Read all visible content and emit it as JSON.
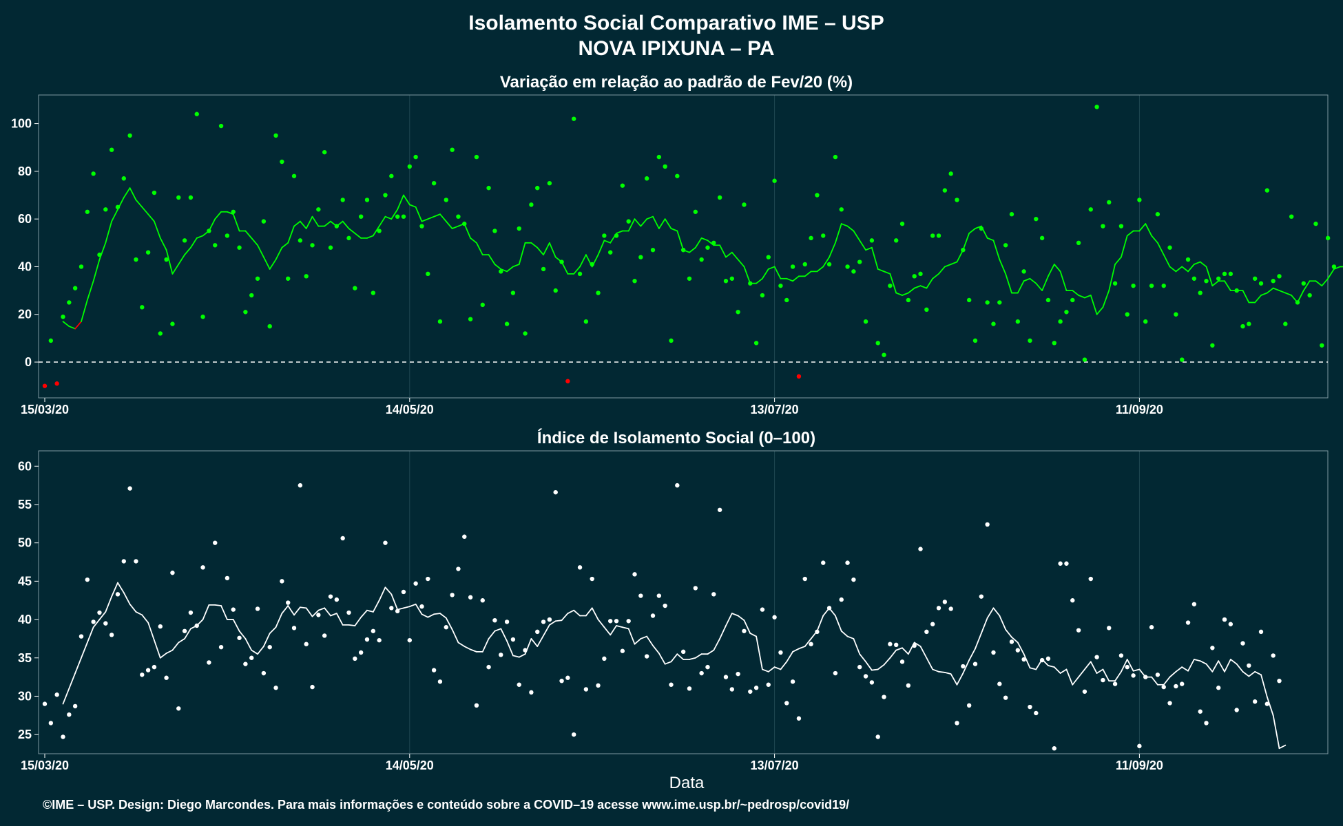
{
  "title": "Isolamento Social Comparativo IME – USP",
  "subtitle": "NOVA IPIXUNA – PA",
  "caption": "©IME – USP. Design: Diego Marcondes. Para mais informações e conteúdo sobre a COVID–19 acesse www.ime.usp.br/~pedrosp/covid19/",
  "colors": {
    "background": "#022833",
    "grid": "#1f4752",
    "positive": "#00ff00",
    "negative": "#ff0000",
    "index": "#ffffff"
  },
  "chart_data": [
    {
      "type": "scatter",
      "title": "Variação em relação ao padrão de Fev/20 (%)",
      "xlabel": "",
      "ylabel": "",
      "x_start": "15/03/20",
      "x_ticks": [
        "15/03/20",
        "14/05/20",
        "13/07/20",
        "11/09/20"
      ],
      "x_tick_days": [
        0,
        60,
        120,
        180
      ],
      "yticks": [
        0,
        20,
        40,
        60,
        80,
        100
      ],
      "ylim": [
        -15,
        112
      ],
      "reference_line": 0,
      "series": [
        {
          "values": [
            -10,
            9,
            -9,
            19,
            25,
            31,
            40,
            63,
            79,
            45,
            64,
            89,
            65,
            77,
            95,
            43,
            23,
            46,
            71,
            12,
            43,
            16,
            69,
            51,
            69,
            104,
            19,
            55,
            49,
            99,
            53,
            63,
            48,
            21,
            28,
            35,
            59,
            15,
            95,
            84,
            35,
            78,
            51,
            36,
            49,
            64,
            88,
            48,
            57,
            68,
            52,
            31,
            61,
            68,
            29,
            55,
            70,
            78,
            61,
            61,
            82,
            86,
            57,
            37,
            75,
            17,
            68,
            89,
            61,
            58,
            18,
            86,
            24,
            73,
            55,
            38,
            16,
            29,
            56,
            12,
            66,
            73,
            39,
            75,
            30,
            42,
            -8,
            102,
            37,
            17,
            41,
            29,
            53,
            46,
            53,
            74,
            59,
            34,
            44,
            77,
            47,
            86,
            82,
            9,
            78,
            47,
            35,
            63,
            43,
            48,
            50,
            69,
            34,
            35,
            21,
            66,
            33,
            8,
            28,
            44,
            76,
            32,
            26,
            40,
            -6,
            41,
            52,
            70,
            53,
            41,
            86,
            64,
            40,
            38,
            42,
            17,
            51,
            8,
            3,
            32,
            51,
            58,
            26,
            36,
            37,
            22,
            53,
            53,
            72,
            79,
            68,
            47,
            26,
            9,
            56,
            25,
            16,
            25,
            49,
            62,
            17,
            38,
            9,
            60,
            52,
            26,
            8,
            17,
            21,
            26,
            50,
            1,
            64,
            107,
            57,
            67,
            33,
            57,
            20,
            32,
            68,
            17,
            32,
            62,
            32,
            48,
            20,
            1,
            43,
            35,
            29,
            34,
            7,
            35,
            37,
            37,
            30,
            15,
            16,
            35,
            33,
            72,
            34,
            36,
            16,
            61,
            25,
            33,
            28,
            58,
            7,
            52,
            40
          ]
        },
        {
          "values": [
            17,
            15,
            14,
            17,
            26,
            34,
            43,
            50,
            59,
            64,
            69,
            73,
            68,
            65,
            62,
            59,
            52,
            47,
            37,
            41,
            45,
            48,
            52,
            53,
            55,
            60,
            63,
            63,
            62,
            55,
            55,
            52,
            49,
            44,
            39,
            43,
            48,
            50,
            57,
            59,
            56,
            61,
            57,
            57,
            59,
            57,
            59,
            56,
            54,
            52,
            52,
            53,
            57,
            61,
            60,
            64,
            70,
            66,
            65,
            59,
            60,
            61,
            62,
            59,
            56,
            57,
            58,
            52,
            50,
            45,
            45,
            41,
            39,
            38,
            40,
            41,
            50,
            50,
            48,
            45,
            50,
            44,
            42,
            37,
            37,
            40,
            45,
            40,
            45,
            51,
            50,
            54,
            55,
            55,
            60,
            57,
            60,
            61,
            56,
            60,
            56,
            55,
            47,
            46,
            48,
            52,
            51,
            49,
            49,
            44,
            46,
            43,
            40,
            33,
            33,
            35,
            39,
            40,
            35,
            35,
            34,
            36,
            36,
            38,
            38,
            40,
            44,
            50,
            58,
            57,
            55,
            51,
            47,
            48,
            39,
            38,
            37,
            29,
            28,
            29,
            31,
            32,
            31,
            35,
            37,
            40,
            41,
            42,
            47,
            54,
            56,
            57,
            52,
            51,
            43,
            37,
            29,
            29,
            34,
            35,
            33,
            30,
            36,
            41,
            38,
            30,
            30,
            28,
            27,
            28,
            20,
            23,
            30,
            41,
            44,
            53,
            55,
            55,
            58,
            53,
            50,
            45,
            40,
            38,
            40,
            38,
            41,
            42,
            40,
            32,
            34,
            34,
            30,
            30,
            30,
            25,
            25,
            28,
            29,
            31,
            30,
            29,
            28,
            25,
            30,
            34,
            34,
            32,
            35,
            39,
            40,
            40,
            33,
            35,
            33,
            38,
            35
          ]
        }
      ]
    },
    {
      "type": "scatter",
      "title": "Índice de Isolamento Social (0–100)",
      "xlabel": "Data",
      "ylabel": "",
      "x_start": "15/03/20",
      "x_ticks": [
        "15/03/20",
        "14/05/20",
        "13/07/20",
        "11/09/20"
      ],
      "x_tick_days": [
        0,
        60,
        120,
        180
      ],
      "yticks": [
        25,
        30,
        35,
        40,
        45,
        50,
        55,
        60
      ],
      "ylim": [
        22.5,
        62
      ],
      "series": [
        {
          "values": [
            29,
            26.5,
            30.2,
            24.7,
            27.6,
            28.7,
            37.8,
            45.2,
            39.7,
            40.9,
            39.5,
            38,
            43.3,
            47.6,
            57.1,
            47.6,
            32.8,
            33.4,
            33.8,
            39.1,
            32.4,
            46.1,
            28.4,
            38.5,
            40.9,
            39.2,
            46.8,
            34.4,
            50,
            36.4,
            45.4,
            41.3,
            37.6,
            34.2,
            35,
            41.4,
            33,
            36.4,
            31.1,
            45,
            42.2,
            38.9,
            57.5,
            36.8,
            31.2,
            40.6,
            37.9,
            43,
            42.6,
            50.6,
            40.9,
            34.9,
            35.7,
            37.4,
            38.5,
            37.3,
            50,
            41.5,
            41.1,
            43.6,
            37.3,
            44.7,
            41.7,
            45.3,
            33.4,
            31.9,
            39,
            43.2,
            46.6,
            50.8,
            42.9,
            28.8,
            42.5,
            33.8,
            39.9,
            35.4,
            39.7,
            37.4,
            31.5,
            36,
            30.5,
            38.4,
            39.7,
            40,
            56.6,
            32,
            32.4,
            25,
            46.8,
            30.9,
            45.3,
            31.4,
            34.9,
            39.8,
            39.8,
            35.9,
            39.8,
            45.9,
            43.1,
            35.2,
            40.5,
            43.1,
            41.8,
            31.5,
            57.5,
            35.8,
            31,
            44.1,
            33,
            33.8,
            43.3,
            54.3,
            32.5,
            30.9,
            32.9,
            38.5,
            30.6,
            31.1,
            41.3,
            31.5,
            40.3,
            35.7,
            29.1,
            31.9,
            27.1,
            45.3,
            36.8,
            38.4,
            47.4,
            41.5,
            33,
            42.6,
            47.4,
            45.2,
            33.8,
            32.6,
            31.8,
            24.7,
            29.9,
            36.8,
            36.7,
            34.5,
            31.4,
            36.6,
            49.2,
            38.4,
            39.4,
            41.5,
            42.3,
            41.4,
            26.5,
            33.9,
            28.8,
            34.2,
            43,
            52.4,
            35.7,
            31.6,
            29.8,
            37.1,
            36,
            34.8,
            28.6,
            27.8,
            34.7,
            34.9,
            23.2,
            47.3,
            47.3,
            42.5,
            38.6,
            30.6,
            45.3,
            35.1,
            32.1,
            38.9,
            31.6,
            35.3,
            33.8,
            32.7,
            23.5,
            32.5,
            39,
            32.8,
            31.2,
            29.1,
            31.3,
            31.6,
            39.6,
            42,
            28,
            26.5,
            36.3,
            31.1,
            40,
            39.4,
            28.2,
            36.9,
            34,
            29.3,
            38.4,
            29,
            35.3,
            32
          ]
        },
        {
          "values": [
            29,
            31,
            33,
            35,
            37,
            39,
            40,
            41,
            43,
            44.8,
            43.5,
            42,
            41,
            40.6,
            39.6,
            37.3,
            35,
            35.6,
            36,
            37,
            37.5,
            38.8,
            39.2,
            40,
            41.9,
            41.9,
            41.8,
            40,
            40,
            38.5,
            37.5,
            36,
            35.5,
            36.5,
            38.2,
            39,
            40.8,
            41.8,
            40.6,
            41.6,
            41.5,
            40.4,
            41.2,
            41.5,
            40.5,
            40.8,
            39.3,
            39.3,
            39.2,
            40.3,
            41.2,
            41,
            42.5,
            44.2,
            43.3,
            41.3,
            41.5,
            41.7,
            42,
            40.7,
            40.3,
            40.7,
            40.8,
            40.2,
            38.7,
            37,
            36.5,
            36.1,
            35.8,
            35.8,
            37.5,
            38.5,
            38.8,
            37.2,
            35.3,
            35.1,
            35.5,
            37.5,
            36.5,
            37.9,
            39.3,
            39.8,
            39.9,
            40.8,
            41.2,
            40.5,
            40.5,
            41.5,
            40,
            39,
            38,
            39.2,
            39,
            38.8,
            36.8,
            37.5,
            37.8,
            36.6,
            35.6,
            34.2,
            34.5,
            35.5,
            34.8,
            34.8,
            35,
            35.5,
            35.5,
            36,
            37.5,
            39.2,
            40.8,
            40.5,
            39.9,
            38.2,
            37.8,
            33.5,
            33.2,
            33.8,
            33.5,
            34.5,
            35.8,
            36.2,
            36.5,
            37.5,
            38.5,
            40.5,
            41.5,
            40.5,
            38.5,
            37.8,
            37.5,
            35.5,
            34.5,
            33.4,
            33.5,
            34.1,
            35,
            36,
            36.3,
            35.5,
            37,
            36.5,
            35,
            33.5,
            33.2,
            33.1,
            32.9,
            31.5,
            33,
            34.7,
            36.2,
            38.2,
            40.2,
            41.5,
            40.5,
            38.7,
            37.7,
            37,
            35.5,
            33.7,
            33.5,
            34.8,
            34,
            33.8,
            33,
            33.5,
            31.5,
            32.5,
            33.5,
            34.5,
            33,
            33.5,
            32,
            32,
            33.2,
            34.8,
            33.3,
            33.5,
            32.5,
            32.5,
            31.5,
            31.5,
            32.5,
            33.2,
            33.8,
            33.3,
            34.8,
            34.6,
            34.2,
            33.2,
            34.6,
            33.2,
            34.8,
            34.2,
            33.2,
            32.6,
            33.2,
            32.8,
            29.9,
            27.5,
            23.2,
            23.6
          ]
        }
      ]
    }
  ]
}
